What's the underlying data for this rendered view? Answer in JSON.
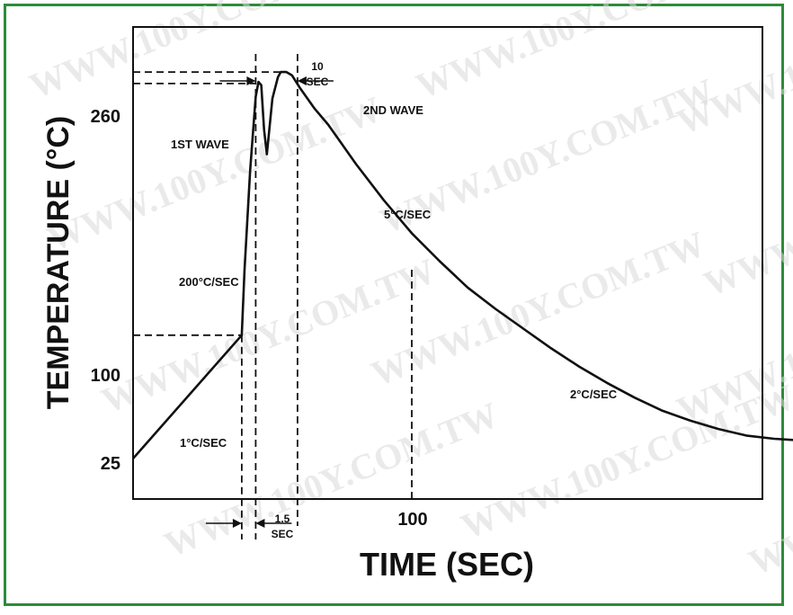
{
  "watermark": "WWW.100Y.COM.TW",
  "chart_data": {
    "type": "line",
    "title": "",
    "xlabel": "TIME (SEC)",
    "ylabel": "TEMPERATURE (°C)",
    "ytick_labels": [
      "260",
      "100",
      "25"
    ],
    "xtick_labels": [
      "100"
    ],
    "grid": false,
    "series": [
      {
        "x": [
          0,
          39,
          40,
          42,
          44,
          45,
          46,
          47,
          48,
          50,
          52,
          53,
          55,
          57,
          60,
          65,
          70,
          80,
          90,
          100,
          110,
          120,
          130,
          140,
          150,
          160,
          170,
          180,
          190,
          200,
          210,
          220,
          230,
          240,
          248
        ],
        "y": [
          25,
          100,
          140,
          200,
          245,
          254,
          252,
          225,
          210,
          244,
          257,
          260,
          260,
          258,
          250,
          238,
          228,
          204,
          182,
          162,
          145,
          129,
          116,
          104,
          92,
          81,
          71,
          62,
          54,
          48,
          43,
          39,
          37,
          36,
          36
        ]
      }
    ],
    "annotations": {
      "first_wave": "1ST WAVE",
      "second_wave": "2ND WAVE",
      "rate_preheat": "1°C/SEC",
      "rate_ramp": "200°C/SEC",
      "rate_cool1": "5°C/SEC",
      "rate_cool2": "2°C/SEC",
      "dwell_10_a": "10",
      "dwell_10_b": "SEC",
      "dwell_15_a": "1.5",
      "dwell_15_b": "SEC"
    },
    "colors": {
      "frame": "#2e8b3a",
      "line": "#111111"
    }
  }
}
